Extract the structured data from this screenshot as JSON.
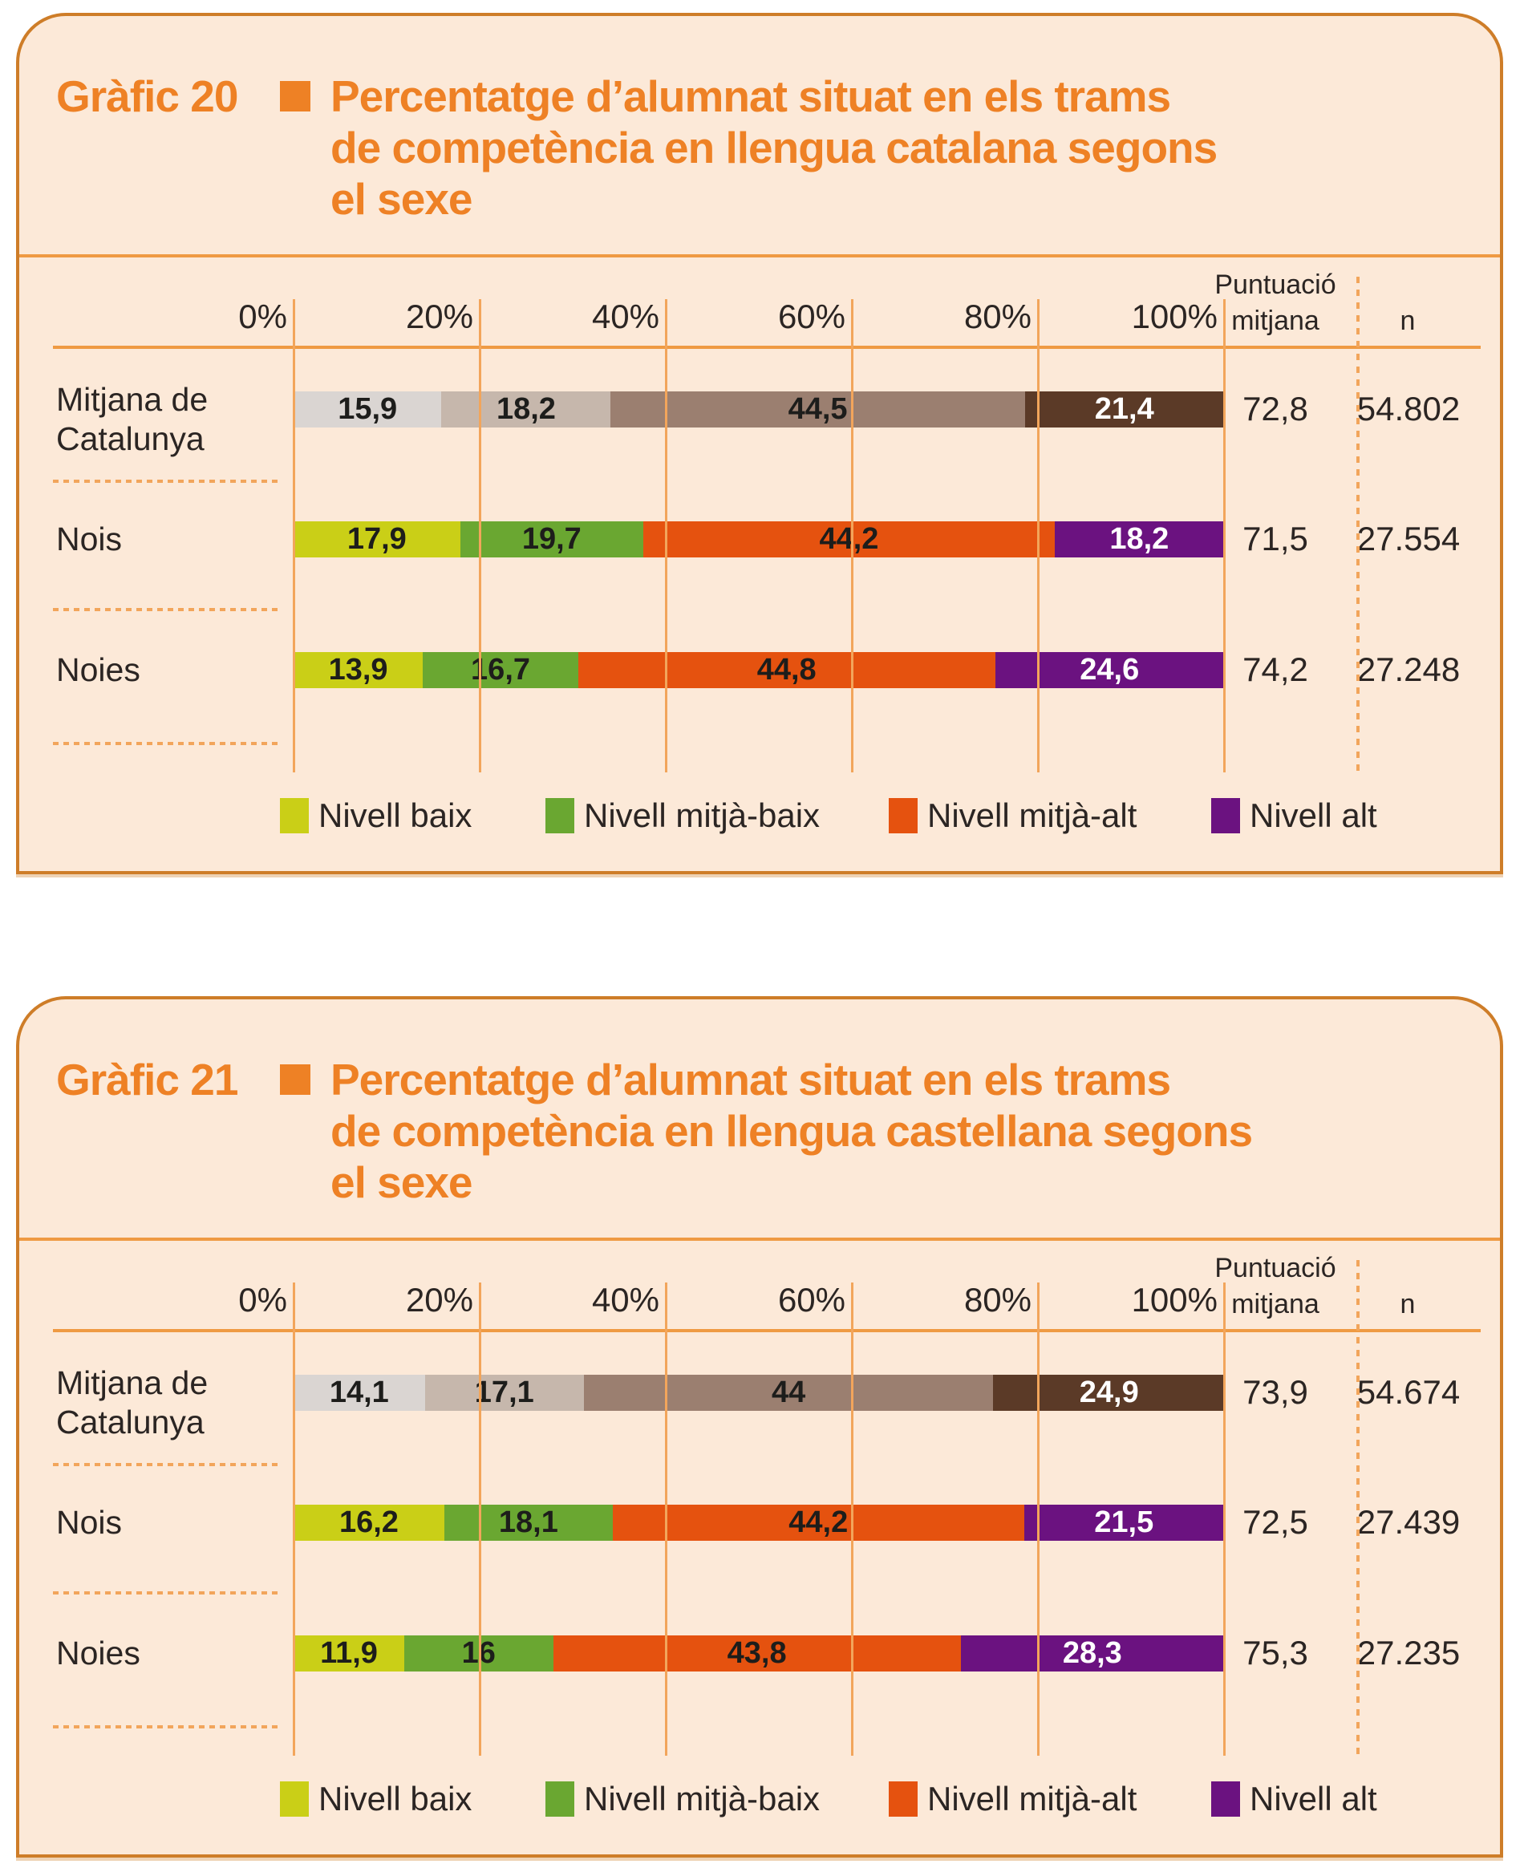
{
  "colors": {
    "page_background": "#ffffff",
    "panel_background": "#fce9d8",
    "panel_border": "#ce7d28",
    "title_orange": "#ee8125",
    "line_orange": "#ef9a43",
    "grid_orange": "#f2a55b",
    "text_dark": "#2b2523"
  },
  "palettes": {
    "neutral": [
      "#dad5d2",
      "#c6b7ac",
      "#9b7f70",
      "#5b3a27"
    ],
    "sex": [
      "#cacf17",
      "#6aa731",
      "#e5520f",
      "#6b1280"
    ]
  },
  "charts": [
    {
      "label": "Gràfic 20",
      "title_lines": [
        "Percentatge d’alumnat situat en els trams",
        "de competència en llengua catalana segons",
        "el sexe"
      ],
      "axis_ticks": [
        "0%",
        "20%",
        "40%",
        "60%",
        "80%",
        "100%"
      ],
      "col_puntuacio_lines": [
        "Puntuació",
        "mitjana"
      ],
      "col_n": "n",
      "rows": [
        {
          "label_lines": [
            "Mitjana de",
            "Catalunya"
          ],
          "palette": "neutral",
          "values": [
            15.9,
            18.2,
            44.5,
            21.4
          ],
          "display": [
            "15,9",
            "18,2",
            "44,5",
            "21,4"
          ],
          "puntuacio": "72,8",
          "n": "54.802"
        },
        {
          "label_lines": [
            "Nois",
            ""
          ],
          "palette": "sex",
          "values": [
            17.9,
            19.7,
            44.2,
            18.2
          ],
          "display": [
            "17,9",
            "19,7",
            "44,2",
            "18,2"
          ],
          "puntuacio": "71,5",
          "n": "27.554"
        },
        {
          "label_lines": [
            "Noies",
            ""
          ],
          "palette": "sex",
          "values": [
            13.9,
            16.7,
            44.8,
            24.6
          ],
          "display": [
            "13,9",
            "16,7",
            "44,8",
            "24,6"
          ],
          "puntuacio": "74,2",
          "n": "27.248"
        }
      ],
      "legend": [
        {
          "label": "Nivell baix",
          "color": "#cacf17"
        },
        {
          "label": "Nivell mitjà-baix",
          "color": "#6aa731"
        },
        {
          "label": "Nivell mitjà-alt",
          "color": "#e5520f"
        },
        {
          "label": "Nivell alt",
          "color": "#6b1280"
        }
      ]
    },
    {
      "label": "Gràfic 21",
      "title_lines": [
        "Percentatge d’alumnat situat en els trams",
        "de competència en llengua castellana segons",
        "el sexe"
      ],
      "axis_ticks": [
        "0%",
        "20%",
        "40%",
        "60%",
        "80%",
        "100%"
      ],
      "col_puntuacio_lines": [
        "Puntuació",
        "mitjana"
      ],
      "col_n": "n",
      "rows": [
        {
          "label_lines": [
            "Mitjana de",
            "Catalunya"
          ],
          "palette": "neutral",
          "values": [
            14.1,
            17.1,
            44.0,
            24.9
          ],
          "display": [
            "14,1",
            "17,1",
            "44",
            "24,9"
          ],
          "puntuacio": "73,9",
          "n": "54.674"
        },
        {
          "label_lines": [
            "Nois",
            ""
          ],
          "palette": "sex",
          "values": [
            16.2,
            18.1,
            44.2,
            21.5
          ],
          "display": [
            "16,2",
            "18,1",
            "44,2",
            "21,5"
          ],
          "puntuacio": "72,5",
          "n": "27.439"
        },
        {
          "label_lines": [
            "Noies",
            ""
          ],
          "palette": "sex",
          "values": [
            11.9,
            16.0,
            43.8,
            28.3
          ],
          "display": [
            "11,9",
            "16",
            "43,8",
            "28,3"
          ],
          "puntuacio": "75,3",
          "n": "27.235"
        }
      ],
      "legend": [
        {
          "label": "Nivell baix",
          "color": "#cacf17"
        },
        {
          "label": "Nivell mitjà-baix",
          "color": "#6aa731"
        },
        {
          "label": "Nivell mitjà-alt",
          "color": "#e5520f"
        },
        {
          "label": "Nivell alt",
          "color": "#6b1280"
        }
      ]
    }
  ],
  "chart_data": [
    {
      "type": "bar",
      "stacked": true,
      "orientation": "horizontal",
      "title": "Gràfic 20 — Percentatge d’alumnat situat en els trams de competència en llengua catalana segons el sexe",
      "categories": [
        "Mitjana de Catalunya",
        "Nois",
        "Noies"
      ],
      "series": [
        {
          "name": "Nivell baix",
          "values": [
            15.9,
            17.9,
            13.9
          ]
        },
        {
          "name": "Nivell mitjà-baix",
          "values": [
            18.2,
            19.7,
            16.7
          ]
        },
        {
          "name": "Nivell mitjà-alt",
          "values": [
            44.5,
            44.2,
            44.8
          ]
        },
        {
          "name": "Nivell alt",
          "values": [
            21.4,
            18.2,
            24.6
          ]
        }
      ],
      "extra_columns": {
        "Puntuació mitjana": [
          72.8,
          71.5,
          74.2
        ],
        "n": [
          54802,
          27554,
          27248
        ]
      },
      "xlim": [
        0,
        100
      ],
      "x_ticks": [
        "0%",
        "20%",
        "40%",
        "60%",
        "80%",
        "100%"
      ],
      "grid": true,
      "legend_position": "bottom"
    },
    {
      "type": "bar",
      "stacked": true,
      "orientation": "horizontal",
      "title": "Gràfic 21 — Percentatge d’alumnat situat en els trams de competència en llengua castellana segons el sexe",
      "categories": [
        "Mitjana de Catalunya",
        "Nois",
        "Noies"
      ],
      "series": [
        {
          "name": "Nivell baix",
          "values": [
            14.1,
            16.2,
            11.9
          ]
        },
        {
          "name": "Nivell mitjà-baix",
          "values": [
            17.1,
            18.1,
            16.0
          ]
        },
        {
          "name": "Nivell mitjà-alt",
          "values": [
            44.0,
            44.2,
            43.8
          ]
        },
        {
          "name": "Nivell alt",
          "values": [
            24.9,
            21.5,
            28.3
          ]
        }
      ],
      "extra_columns": {
        "Puntuació mitjana": [
          73.9,
          72.5,
          75.3
        ],
        "n": [
          54674,
          27439,
          27235
        ]
      },
      "xlim": [
        0,
        100
      ],
      "x_ticks": [
        "0%",
        "20%",
        "40%",
        "60%",
        "80%",
        "100%"
      ],
      "grid": true,
      "legend_position": "bottom"
    }
  ]
}
